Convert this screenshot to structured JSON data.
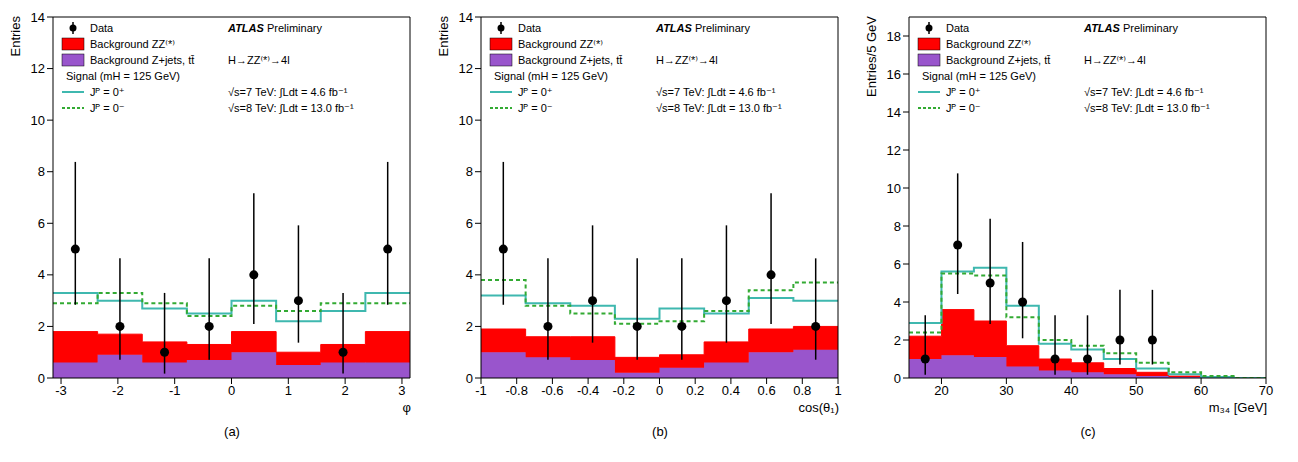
{
  "chart_data": [
    {
      "type": "histogram",
      "title": "ATLAS",
      "subtitle": "Preliminary",
      "panel_label": "(a)",
      "annotations": [
        "H→ZZ⁽*⁾→4l",
        "√s=7 TeV: ∫Ldt = 4.6 fb⁻¹",
        "√s=8 TeV: ∫Ldt = 13.0 fb⁻¹"
      ],
      "legend_title": "Signal (mH = 125 GeV)",
      "x_label": "φ",
      "y_label": "Entries",
      "stacked": true,
      "bins": [
        -3.1416,
        -2.3562,
        -1.5708,
        -0.7854,
        0,
        0.7854,
        1.5708,
        2.3562,
        3.1416
      ],
      "xlim": [
        -3.1416,
        3.1416
      ],
      "xticks": [
        -3,
        -2,
        -1,
        0,
        1,
        2,
        3
      ],
      "ylim": [
        0,
        14
      ],
      "yticks": [
        0,
        2,
        4,
        6,
        8,
        10,
        12,
        14
      ],
      "series": [
        {
          "name": "Data",
          "type": "scatter",
          "marker": "circle",
          "color": "#000000",
          "values": [
            5,
            2,
            1,
            2,
            4,
            3,
            1,
            5
          ],
          "error_low": [
            2.16,
            1.29,
            0.83,
            1.29,
            1.91,
            1.63,
            0.83,
            2.16
          ],
          "error_high": [
            3.38,
            2.64,
            2.3,
            2.64,
            3.16,
            2.92,
            2.3,
            3.38
          ]
        },
        {
          "name": "Background ZZ⁽*⁾",
          "type": "bar",
          "color": "#ff0000",
          "values": [
            1.2,
            0.8,
            0.8,
            0.6,
            0.8,
            0.5,
            0.7,
            1.2
          ]
        },
        {
          "name": "Background Z+jets, tt̄",
          "type": "bar",
          "color": "#9955cc",
          "values": [
            0.6,
            0.9,
            0.6,
            0.7,
            1.0,
            0.5,
            0.6,
            0.6
          ]
        },
        {
          "name": "Jᴾ = 0⁺",
          "type": "line",
          "line_style": "solid",
          "color": "#3fb8af",
          "values": [
            3.3,
            3.0,
            2.7,
            2.5,
            3.0,
            2.2,
            2.6,
            3.3
          ]
        },
        {
          "name": "Jᴾ = 0⁻",
          "type": "line",
          "line_style": "dashed",
          "color": "#33aa33",
          "values": [
            2.9,
            3.3,
            2.9,
            2.4,
            2.8,
            2.6,
            2.9,
            2.9
          ]
        }
      ]
    },
    {
      "type": "histogram",
      "title": "ATLAS",
      "subtitle": "Preliminary",
      "panel_label": "(b)",
      "annotations": [
        "H→ZZ⁽*⁾→4l",
        "√s=7 TeV: ∫Ldt = 4.6 fb⁻¹",
        "√s=8 TeV: ∫Ldt = 13.0 fb⁻¹"
      ],
      "legend_title": "Signal (mH = 125 GeV)",
      "x_label": "cos(θ₁)",
      "y_label": "Entries",
      "stacked": true,
      "bins": [
        -1,
        -0.75,
        -0.5,
        -0.25,
        0,
        0.25,
        0.5,
        0.75,
        1
      ],
      "xlim": [
        -1,
        1
      ],
      "xticks": [
        -1,
        -0.8,
        -0.6,
        -0.4,
        -0.2,
        0,
        0.2,
        0.4,
        0.6,
        0.8,
        1
      ],
      "ylim": [
        0,
        14
      ],
      "yticks": [
        0,
        2,
        4,
        6,
        8,
        10,
        12,
        14
      ],
      "series": [
        {
          "name": "Data",
          "type": "scatter",
          "marker": "circle",
          "color": "#000000",
          "values": [
            5,
            2,
            3,
            2,
            2,
            3,
            4,
            2
          ],
          "error_low": [
            2.16,
            1.29,
            1.63,
            1.29,
            1.29,
            1.63,
            1.91,
            1.29
          ],
          "error_high": [
            3.38,
            2.64,
            2.92,
            2.64,
            2.64,
            2.92,
            3.16,
            2.64
          ]
        },
        {
          "name": "Background ZZ⁽*⁾",
          "type": "bar",
          "color": "#ff0000",
          "values": [
            0.9,
            0.8,
            0.9,
            0.6,
            0.5,
            0.8,
            0.9,
            0.9
          ]
        },
        {
          "name": "Background Z+jets, tt̄",
          "type": "bar",
          "color": "#9955cc",
          "values": [
            1.0,
            0.8,
            0.7,
            0.2,
            0.4,
            0.6,
            1.0,
            1.1
          ]
        },
        {
          "name": "Jᴾ = 0⁺",
          "type": "line",
          "line_style": "solid",
          "color": "#3fb8af",
          "values": [
            3.2,
            2.9,
            2.8,
            2.3,
            2.7,
            2.5,
            3.1,
            3.0
          ]
        },
        {
          "name": "Jᴾ = 0⁻",
          "type": "line",
          "line_style": "dashed",
          "color": "#33aa33",
          "values": [
            3.8,
            2.8,
            2.5,
            2.1,
            2.2,
            2.6,
            3.4,
            3.7
          ]
        }
      ]
    },
    {
      "type": "histogram",
      "title": "ATLAS",
      "subtitle": "Preliminary",
      "panel_label": "(c)",
      "annotations": [
        "H→ZZ⁽*⁾→4l",
        "√s=7 TeV: ∫Ldt = 4.6 fb⁻¹",
        "√s=8 TeV: ∫Ldt = 13.0 fb⁻¹"
      ],
      "legend_title": "Signal (mH = 125 GeV)",
      "x_label": "m₃₄ [GeV]",
      "y_label": "Entries/5 GeV",
      "stacked": true,
      "bins": [
        15,
        20,
        25,
        30,
        35,
        40,
        45,
        50,
        55,
        60,
        65,
        70
      ],
      "xlim": [
        15,
        70
      ],
      "xticks": [
        20,
        30,
        40,
        50,
        60,
        70
      ],
      "ylim": [
        0,
        19
      ],
      "yticks": [
        0,
        2,
        4,
        6,
        8,
        10,
        12,
        14,
        16,
        18
      ],
      "series": [
        {
          "name": "Data",
          "type": "scatter",
          "marker": "circle",
          "color": "#000000",
          "values": [
            1,
            7,
            5,
            4,
            1,
            1,
            2,
            2,
            null,
            null,
            null
          ],
          "error_low": [
            0.83,
            2.58,
            2.16,
            1.91,
            0.83,
            0.83,
            1.29,
            1.29,
            null,
            null,
            null
          ],
          "error_high": [
            2.3,
            3.77,
            3.38,
            3.16,
            2.3,
            2.3,
            2.64,
            2.64,
            null,
            null,
            null
          ]
        },
        {
          "name": "Background ZZ⁽*⁾",
          "type": "bar",
          "color": "#ff0000",
          "values": [
            1.2,
            2.4,
            1.9,
            1.1,
            0.6,
            0.5,
            0.3,
            0.2,
            0.05,
            0,
            0
          ]
        },
        {
          "name": "Background Z+jets, tt̄",
          "type": "bar",
          "color": "#9955cc",
          "values": [
            1.0,
            1.2,
            1.1,
            0.6,
            0.4,
            0.3,
            0.2,
            0.1,
            0.05,
            0,
            0
          ]
        },
        {
          "name": "Jᴾ = 0⁺",
          "type": "line",
          "line_style": "solid",
          "color": "#3fb8af",
          "values": [
            2.9,
            5.6,
            5.8,
            3.8,
            1.8,
            1.5,
            1.0,
            0.5,
            0.2,
            0.05,
            0
          ]
        },
        {
          "name": "Jᴾ = 0⁻",
          "type": "line",
          "line_style": "dashed",
          "color": "#33aa33",
          "values": [
            2.4,
            5.5,
            5.4,
            3.2,
            2.0,
            1.7,
            1.3,
            0.8,
            0.3,
            0.1,
            0
          ]
        }
      ]
    }
  ]
}
